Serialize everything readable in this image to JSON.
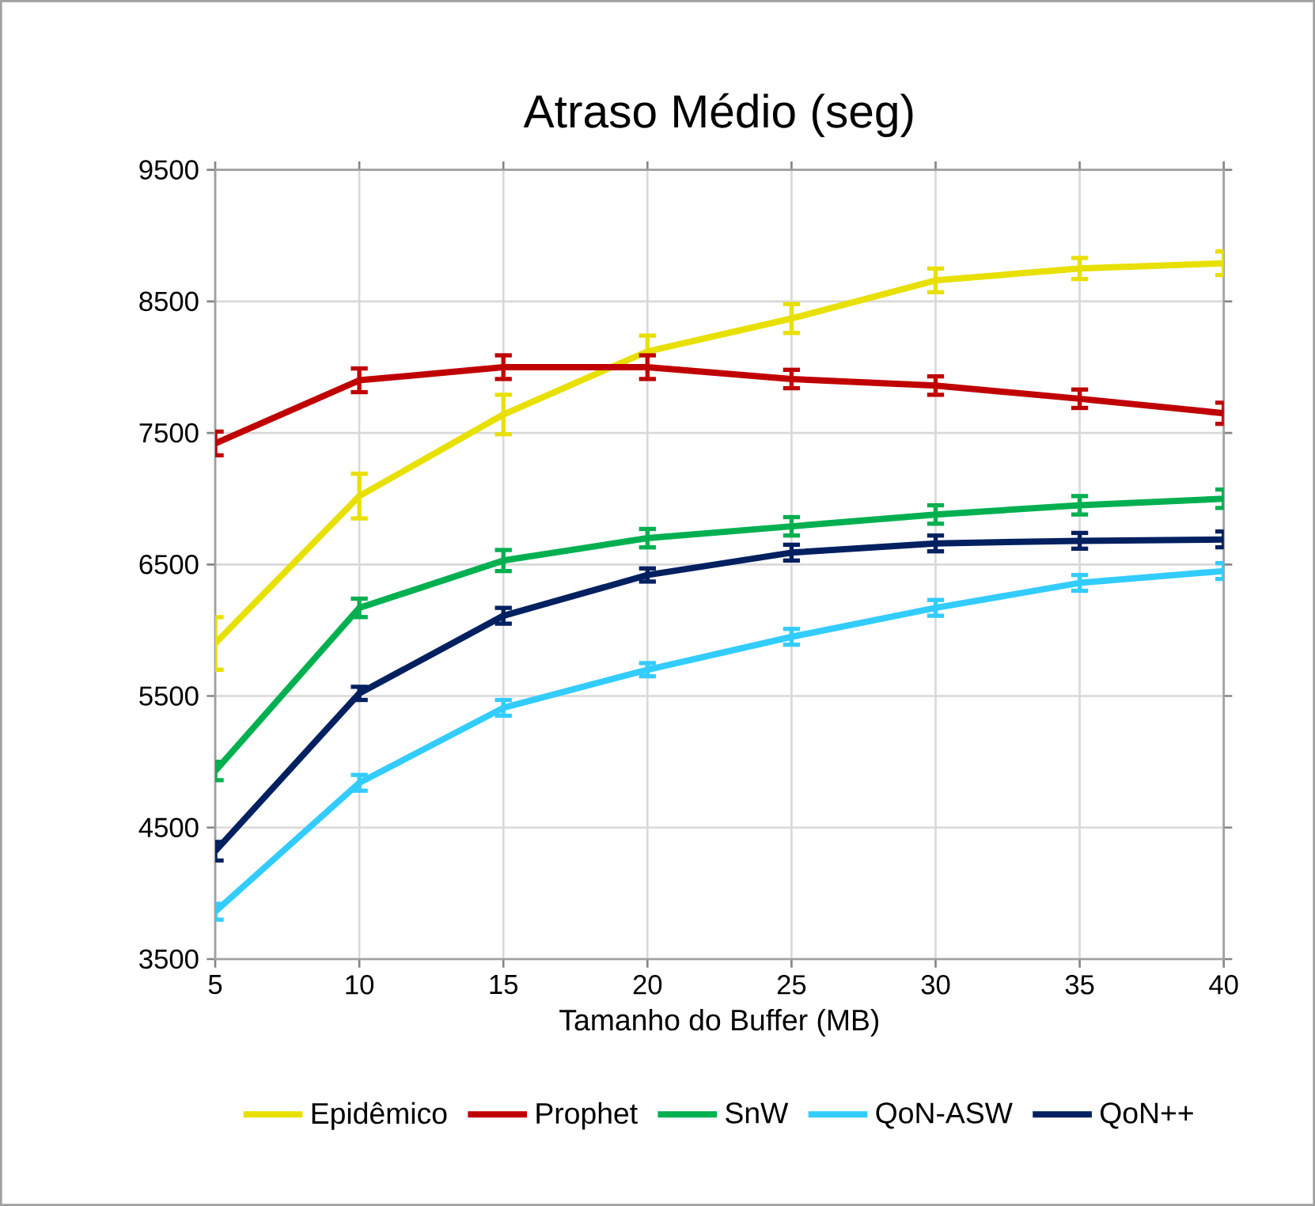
{
  "chart_data": {
    "type": "line",
    "title": "Atraso Médio (seg)",
    "xlabel": "Tamanho do Buffer (MB)",
    "x": [
      5,
      10,
      15,
      20,
      25,
      30,
      35,
      40
    ],
    "xlim": [
      5,
      40
    ],
    "xticks": [
      5,
      10,
      15,
      20,
      25,
      30,
      35,
      40
    ],
    "ylim": [
      3500,
      9500
    ],
    "yticks": [
      3500,
      4500,
      5500,
      6500,
      7500,
      8500,
      9500
    ],
    "grid": true,
    "legend": "bottom",
    "marker": "none",
    "line_style": "solid",
    "series": [
      {
        "name": "Epidêmico",
        "color": "#e8e000",
        "values": [
          5900,
          7020,
          7640,
          8120,
          8370,
          8660,
          8750,
          8790
        ],
        "errors": [
          200,
          170,
          150,
          120,
          110,
          90,
          80,
          90
        ]
      },
      {
        "name": "Prophet",
        "color": "#c00000",
        "values": [
          7420,
          7900,
          8000,
          8000,
          7910,
          7860,
          7760,
          7650
        ],
        "errors": [
          90,
          90,
          90,
          90,
          70,
          70,
          70,
          80
        ]
      },
      {
        "name": "SnW",
        "color": "#00b050",
        "values": [
          4930,
          6170,
          6530,
          6700,
          6790,
          6880,
          6950,
          7000
        ],
        "errors": [
          70,
          70,
          80,
          70,
          70,
          70,
          70,
          70
        ]
      },
      {
        "name": "QoN-ASW",
        "color": "#33ccff",
        "values": [
          3860,
          4840,
          5410,
          5700,
          5950,
          6170,
          6360,
          6450
        ],
        "errors": [
          60,
          60,
          60,
          50,
          60,
          60,
          60,
          60
        ]
      },
      {
        "name": "QoN++",
        "color": "#002060",
        "values": [
          4320,
          5520,
          6110,
          6420,
          6590,
          6660,
          6680,
          6690
        ],
        "errors": [
          70,
          50,
          60,
          50,
          60,
          60,
          60,
          60
        ]
      }
    ]
  }
}
